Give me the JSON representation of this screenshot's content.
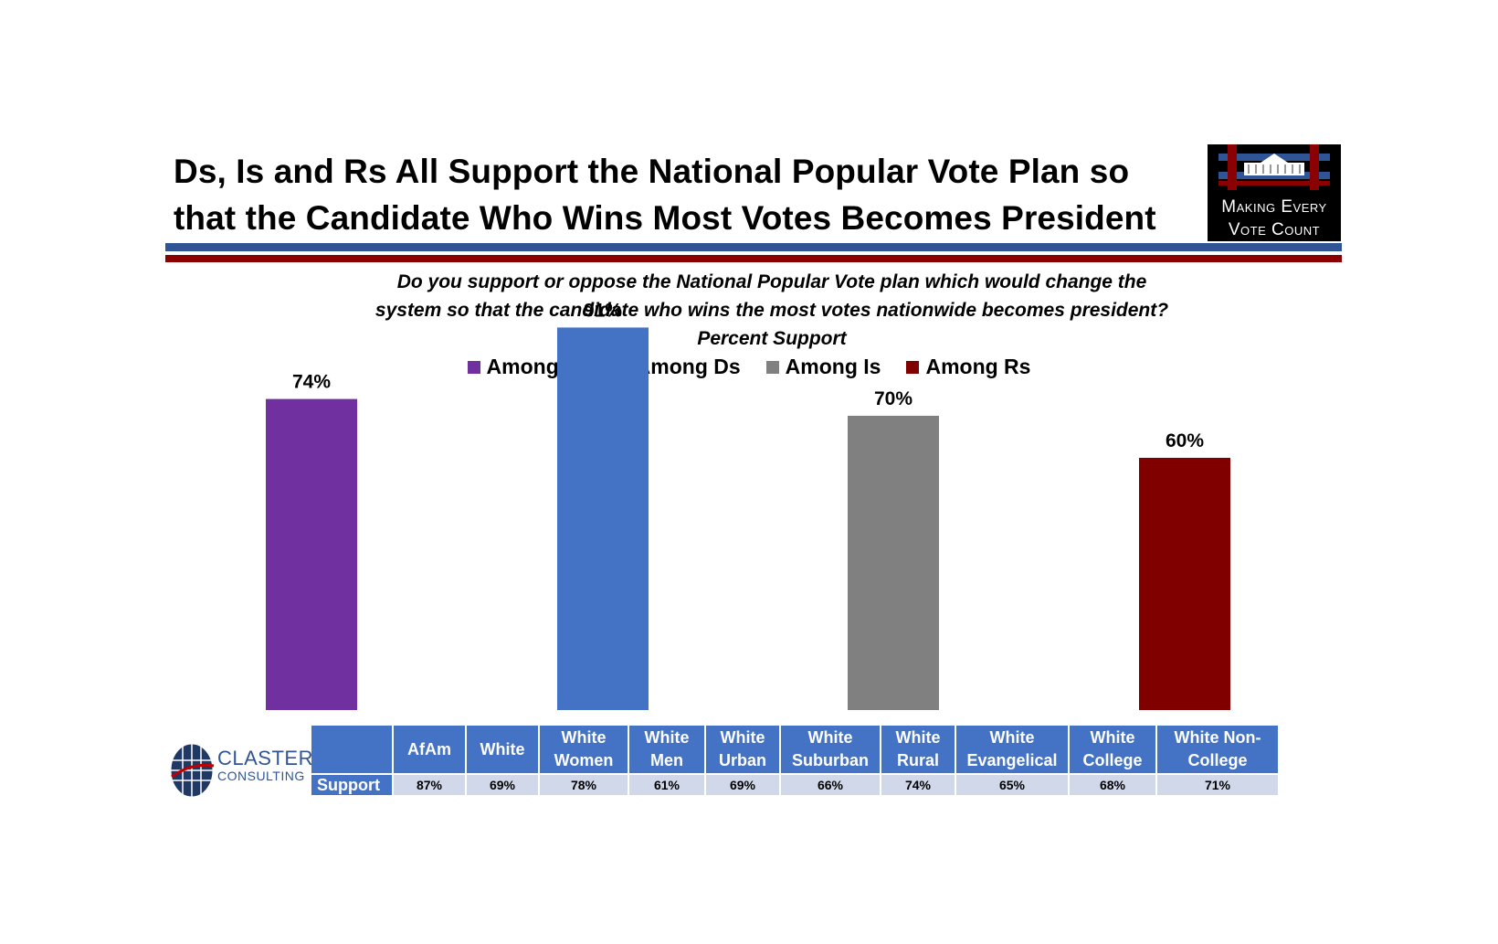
{
  "header": {
    "title_line1": "Ds, Is and Rs All Support the National Popular Vote Plan so",
    "title_line2": "that the Candidate Who Wins Most Votes Becomes President"
  },
  "logo_mevc": {
    "line1": "Making Every",
    "line2": "Vote Count"
  },
  "logo_claster": {
    "line1": "CLASTER",
    "line2": "CONSULTING"
  },
  "question": {
    "line1": "Do you support or oppose the National Popular Vote plan which would change the",
    "line2": "system so that the candidate who wins the most votes nationwide becomes president?",
    "line3": "Percent Support"
  },
  "colors": {
    "rule_blue": "#2f5597",
    "rule_red": "#8b0000",
    "table_header": "#4472c4",
    "table_cell": "#d0d8ea"
  },
  "chart_data": {
    "type": "bar",
    "title": "",
    "xlabel": "",
    "ylabel": "",
    "ylim": [
      0,
      100
    ],
    "grid": false,
    "legend_position": "top-center",
    "categories": [
      "Among All",
      "Among Ds",
      "Among Is",
      "Among Rs"
    ],
    "values": [
      74,
      91,
      70,
      60
    ],
    "data_labels": [
      "74%",
      "91%",
      "70%",
      "60%"
    ],
    "colors": [
      "#7030a0",
      "#4472c4",
      "#808080",
      "#800000"
    ],
    "legend": [
      "Among All",
      "Among Ds",
      "Among Is",
      "Among Rs"
    ]
  },
  "table": {
    "headers": [
      {
        "l1": "AfAm",
        "l2": ""
      },
      {
        "l1": "White",
        "l2": ""
      },
      {
        "l1": "White",
        "l2": "Women"
      },
      {
        "l1": "White",
        "l2": "Men"
      },
      {
        "l1": "White",
        "l2": "Urban"
      },
      {
        "l1": "White",
        "l2": "Suburban"
      },
      {
        "l1": "White",
        "l2": "Rural"
      },
      {
        "l1": "White",
        "l2": "Evangelical"
      },
      {
        "l1": "White",
        "l2": "College"
      },
      {
        "l1": "White Non-",
        "l2": "College"
      }
    ],
    "row_label": "Support",
    "values": [
      "87%",
      "69%",
      "78%",
      "61%",
      "69%",
      "66%",
      "74%",
      "65%",
      "68%",
      "71%"
    ]
  }
}
